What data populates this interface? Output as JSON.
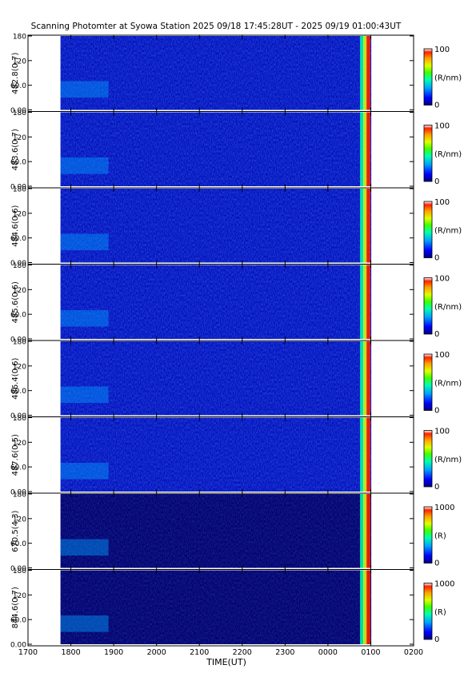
{
  "chart_data": {
    "type": "heatmap",
    "title": "Scanning Photomter at Syowa Station  2025 09/18 17:45:28UT - 2025 09/19 01:00:43UT",
    "xlabel": "TIME(UT)",
    "x_tick_labels": [
      "1700",
      "1800",
      "1900",
      "2000",
      "2100",
      "2200",
      "2300",
      "0000",
      "0100",
      "0200"
    ],
    "x_range_ut_hours": [
      17.0,
      26.0
    ],
    "data_start_ut_hours": 17.758,
    "data_end_ut_hours": 25.012,
    "y_tick_labels": [
      "0.00",
      "60.0",
      "120",
      "180"
    ],
    "y_range": [
      0,
      180
    ],
    "colormap": [
      "#000080",
      "#0000ff",
      "#00a0ff",
      "#00ffb0",
      "#40ff00",
      "#e0ff00",
      "#ffa000",
      "#ff2000",
      "#ffffff"
    ],
    "panels": [
      {
        "ylabel": "482.8(0.7)",
        "colorbar_max": "100",
        "colorbar_unit": "(R/nm)",
        "colorbar_min": "0"
      },
      {
        "ylabel": "483.6(0.7)",
        "colorbar_max": "100",
        "colorbar_unit": "(R/nm)",
        "colorbar_min": "0"
      },
      {
        "ylabel": "484.6(0.6)",
        "colorbar_max": "100",
        "colorbar_unit": "(R/nm)",
        "colorbar_min": "0"
      },
      {
        "ylabel": "485.6(0.6)",
        "colorbar_max": "100",
        "colorbar_unit": "(R/nm)",
        "colorbar_min": "0"
      },
      {
        "ylabel": "486.4(0.6)",
        "colorbar_max": "100",
        "colorbar_unit": "(R/nm)",
        "colorbar_min": "0"
      },
      {
        "ylabel": "487.6(0.5)",
        "colorbar_max": "100",
        "colorbar_unit": "(R/nm)",
        "colorbar_min": "0"
      },
      {
        "ylabel": "670.5(4.3)",
        "colorbar_max": "1000",
        "colorbar_unit": "(R)",
        "colorbar_min": "0"
      },
      {
        "ylabel": "844.6(0.7)",
        "colorbar_max": "1000",
        "colorbar_unit": "(R)",
        "colorbar_min": "0"
      }
    ]
  }
}
